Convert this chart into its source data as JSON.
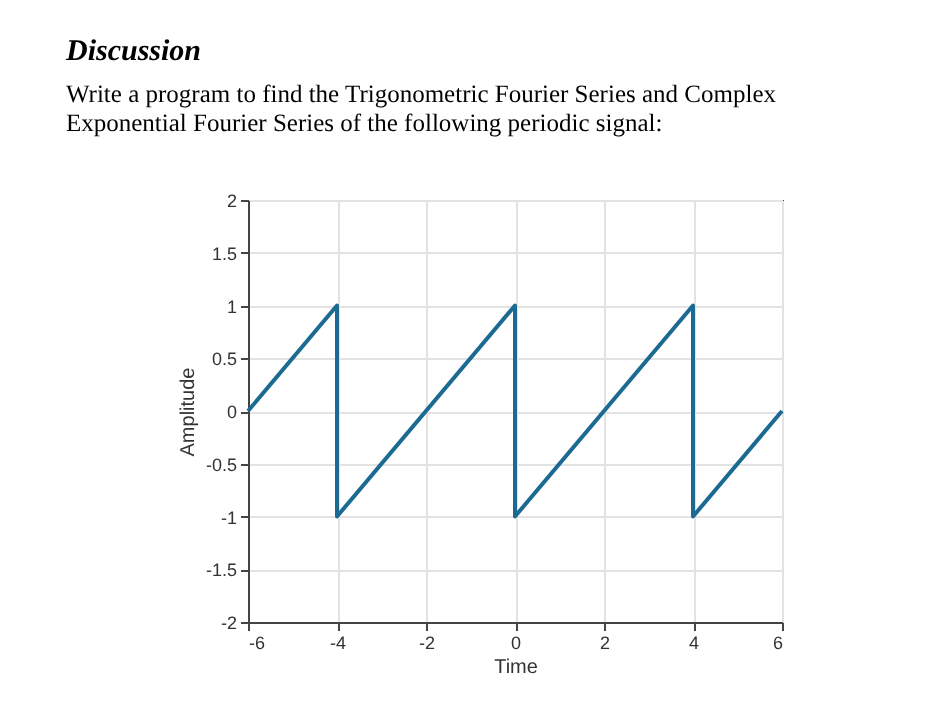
{
  "chart_data": {
    "type": "line",
    "title": "Discussion",
    "subtitle": "Write a program to find the Trigonometric Fourier Series and Complex Exponential Fourier Series of the following periodic signal:",
    "xlabel": "Time",
    "ylabel": "Amplitude",
    "series": [
      {
        "color": "#1b6a92",
        "x": [
          -6,
          -4,
          -4,
          0,
          0,
          4,
          4,
          6
        ],
        "values": [
          0,
          1,
          -1,
          1,
          -1,
          1,
          -1,
          0
        ]
      }
    ],
    "xlim": [
      -6,
      6
    ],
    "xticks": [
      -6,
      -4,
      -2,
      0,
      2,
      4,
      6
    ],
    "ylim": [
      -2,
      2
    ],
    "yticks": [
      -2,
      -1.5,
      -1,
      -0.5,
      0,
      0.5,
      1,
      1.5,
      2
    ],
    "grid": true,
    "legend": false,
    "marker": "none",
    "line_style": "solid"
  }
}
